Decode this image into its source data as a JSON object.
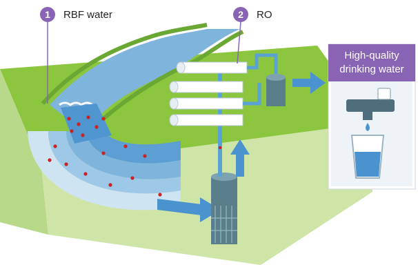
{
  "colors": {
    "accent_purple": "#8a64b4",
    "grass": "#8cc63f",
    "soil": "#cfe5a8",
    "water": "#7fb4dd",
    "contaminant_dots": "#cc2222",
    "pipe": "#5aa2d3",
    "arrow": "#4a93cf",
    "well": "#5b7f8a",
    "panel_bg": "#f2f6fa"
  },
  "callouts": [
    {
      "number": "1",
      "label": "RBF water"
    },
    {
      "number": "2",
      "label": "RO"
    }
  ],
  "panel": {
    "title_line1": "High-quality",
    "title_line2": "drinking water"
  },
  "icons": {
    "river": "river-channel",
    "well": "extraction-well",
    "membranes": "ro-membrane-stack",
    "tank": "pressure-tank",
    "tap": "faucet-icon",
    "glass": "water-glass-icon",
    "flow": "flow-arrow-icon"
  }
}
